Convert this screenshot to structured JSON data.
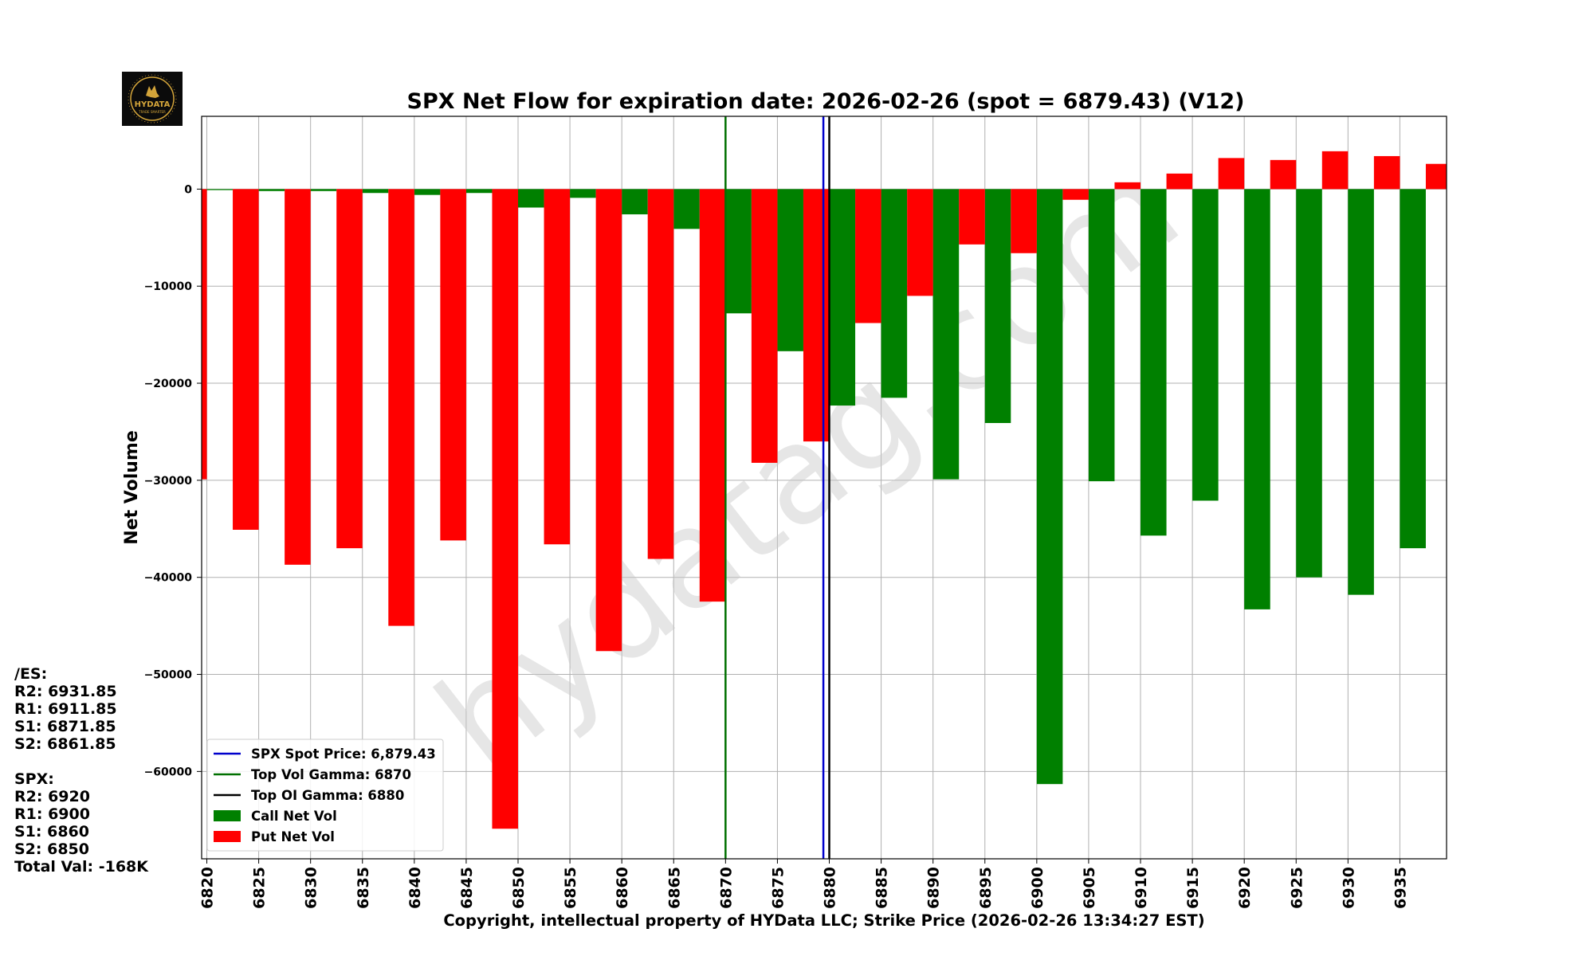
{
  "logo": {
    "text": "HYDATA",
    "subtext": "TRADE SMARTER",
    "gold": "#d4a53a"
  },
  "watermark": "hydatag.com",
  "side_panel": {
    "es_header": "/ES:",
    "es_levels": [
      "R2: 6931.85",
      "R1: 6911.85",
      "S1: 6871.85",
      "S2: 6861.85"
    ],
    "spx_header": "SPX:",
    "spx_levels": [
      "R2: 6920",
      "R1: 6900",
      "S1: 6860",
      "S2: 6850"
    ],
    "total_val": "Total Val: -168K"
  },
  "chart_data": {
    "type": "bar",
    "title": "SPX Net Flow for expiration date: 2026-02-26 (spot = 6879.43) (V12)",
    "xlabel": "Copyright, intellectual property of HYData LLC; Strike Price (2026-02-26 13:34:27 EST)",
    "ylabel": "Net Volume",
    "ylim": [
      -69000,
      7500
    ],
    "yticks": [
      0,
      -10000,
      -20000,
      -30000,
      -40000,
      -50000,
      -60000
    ],
    "xlim": [
      6819.5,
      6939.5
    ],
    "strikes": [
      6820,
      6825,
      6830,
      6835,
      6840,
      6845,
      6850,
      6855,
      6860,
      6865,
      6870,
      6875,
      6880,
      6885,
      6890,
      6895,
      6900,
      6905,
      6910,
      6915,
      6920,
      6925,
      6930,
      6935
    ],
    "bar_width": 2.5,
    "series": [
      {
        "name": "Call Net Vol",
        "color": "#008000",
        "offset": 1.25,
        "values": [
          -100,
          -200,
          -200,
          -400,
          -600,
          -400,
          -1900,
          -900,
          -2600,
          -4100,
          -12800,
          -16700,
          -22300,
          -21500,
          -29900,
          -24100,
          -61300,
          -30100,
          -35700,
          -32100,
          -43300,
          -40000,
          -41800,
          -37000
        ]
      },
      {
        "name": "Put Net Vol",
        "color": "#ff0000",
        "offset": -1.25,
        "values": [
          -29900,
          -35100,
          -38700,
          -37000,
          -45000,
          -36200,
          -65900,
          -36600,
          -47600,
          -38100,
          -42500,
          -28200,
          -26000,
          -13800,
          -11000,
          -5700,
          -6600,
          -1100,
          700,
          1600,
          3200,
          3000,
          3900,
          3400,
          2600
        ]
      },
      {
        "name": "Put Net Vol (tail)",
        "color": "#ff0000",
        "offset": -1.25,
        "skip_legend": true,
        "extra_strike": 6940,
        "values": [
          2600
        ]
      }
    ],
    "vlines": [
      {
        "name": "SPX Spot Price: 6,879.43",
        "x": 6879.43,
        "color": "#0000cc"
      },
      {
        "name": "Top Vol Gamma: 6870",
        "x": 6870,
        "color": "#007000"
      },
      {
        "name": "Top OI Gamma: 6880",
        "x": 6880,
        "color": "#000000"
      }
    ],
    "legend": {
      "position": "lower-left",
      "entries": [
        {
          "label": "SPX Spot Price: 6,879.43",
          "kind": "line",
          "color": "#0000cc"
        },
        {
          "label": "Top Vol Gamma: 6870",
          "kind": "line",
          "color": "#007000"
        },
        {
          "label": "Top OI Gamma: 6880",
          "kind": "line",
          "color": "#000000"
        },
        {
          "label": "Call Net Vol",
          "kind": "patch",
          "color": "#008000"
        },
        {
          "label": "Put Net Vol",
          "kind": "patch",
          "color": "#ff0000"
        }
      ]
    },
    "grid": true
  }
}
